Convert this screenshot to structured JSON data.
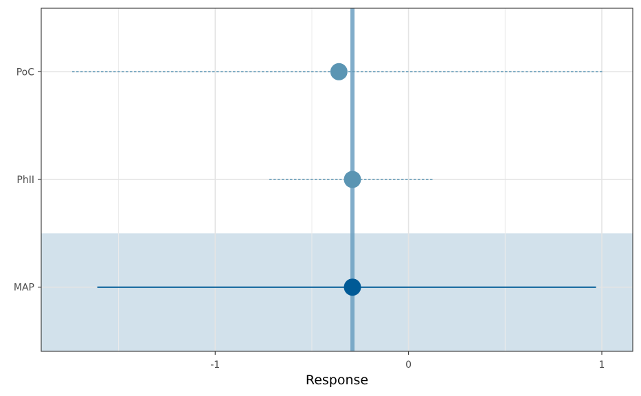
{
  "chart_data": {
    "type": "forest",
    "title": "",
    "xlabel": "Response",
    "ylabel": "",
    "xlim": [
      -1.9,
      1.16
    ],
    "xticks": [
      -1,
      0,
      1
    ],
    "xtick_labels": [
      "-1",
      "0",
      "1"
    ],
    "categories": [
      "PoC",
      "PhII",
      "MAP"
    ],
    "estimates": [
      {
        "label": "PoC",
        "estimate": -0.36,
        "lower": -1.74,
        "upper": 1.01,
        "line_style": "dashed",
        "color": "#5b95b3"
      },
      {
        "label": "PhII",
        "estimate": -0.29,
        "lower": -0.72,
        "upper": 0.13,
        "line_style": "dashed",
        "color": "#5b95b3"
      },
      {
        "label": "MAP",
        "estimate": -0.29,
        "lower": -1.61,
        "upper": 0.97,
        "line_style": "solid",
        "color": "#005a96"
      }
    ],
    "reference_line": {
      "value": -0.29,
      "color": "#6b9fc1"
    },
    "highlight_category": "MAP",
    "highlight_color": "#d2e1eb",
    "grid": true,
    "legend": "none"
  }
}
